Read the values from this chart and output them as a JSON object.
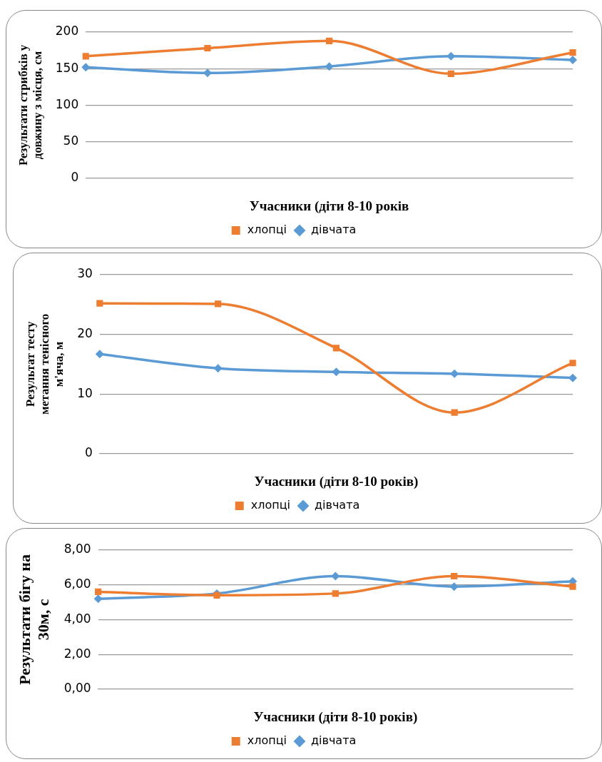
{
  "chart_data": [
    {
      "type": "line",
      "ylabel": "Результати стрибків у довжину з місця, см",
      "xlabel": "Учасники (діти 8-10 років",
      "categories": [
        null,
        null,
        null,
        null,
        null
      ],
      "ylim": [
        0,
        200
      ],
      "yticks": [
        0,
        50,
        100,
        150,
        200
      ],
      "grid": "y",
      "legend": "bottom",
      "series": [
        {
          "name": "дівчата",
          "color": "#5b9bd5",
          "marker": "diamond",
          "values": [
            152,
            144,
            153,
            167,
            162
          ]
        },
        {
          "name": "хлопці",
          "color": "#ed7d31",
          "marker": "square",
          "values": [
            167,
            178,
            188,
            143,
            172
          ]
        }
      ]
    },
    {
      "type": "line",
      "ylabel": "Результат тесту метання тенісного м'яча, м",
      "xlabel": "Учасники (діти 8-10 років)",
      "categories": [
        null,
        null,
        null,
        null,
        null
      ],
      "ylim": [
        0,
        30
      ],
      "yticks": [
        0,
        10,
        20,
        30
      ],
      "grid": "y",
      "legend": "bottom",
      "series": [
        {
          "name": "дівчата",
          "color": "#5b9bd5",
          "marker": "diamond",
          "values": [
            16.7,
            14.3,
            13.7,
            13.4,
            12.7
          ]
        },
        {
          "name": "хлопці",
          "color": "#ed7d31",
          "marker": "square",
          "values": [
            25.2,
            25.1,
            17.7,
            6.9,
            15.2
          ]
        }
      ]
    },
    {
      "type": "line",
      "ylabel": "Результати бігу на 30м, с",
      "xlabel": "Учасники (діти 8-10 років)",
      "categories": [
        null,
        null,
        null,
        null,
        null
      ],
      "ylim": [
        0,
        8
      ],
      "yticks": [
        {
          "value": 0,
          "label": "0,00"
        },
        {
          "value": 2,
          "label": "2,00"
        },
        {
          "value": 4,
          "label": "4,00"
        },
        {
          "value": 6,
          "label": "6,00"
        },
        {
          "value": 8,
          "label": "8,00"
        }
      ],
      "grid": "y",
      "legend": "bottom",
      "series": [
        {
          "name": "дівчата",
          "color": "#5b9bd5",
          "marker": "diamond",
          "values": [
            5.2,
            5.5,
            6.5,
            5.9,
            6.2
          ]
        },
        {
          "name": "хлопці",
          "color": "#ed7d31",
          "marker": "square",
          "values": [
            5.6,
            5.4,
            5.5,
            6.5,
            5.9
          ]
        }
      ]
    }
  ]
}
